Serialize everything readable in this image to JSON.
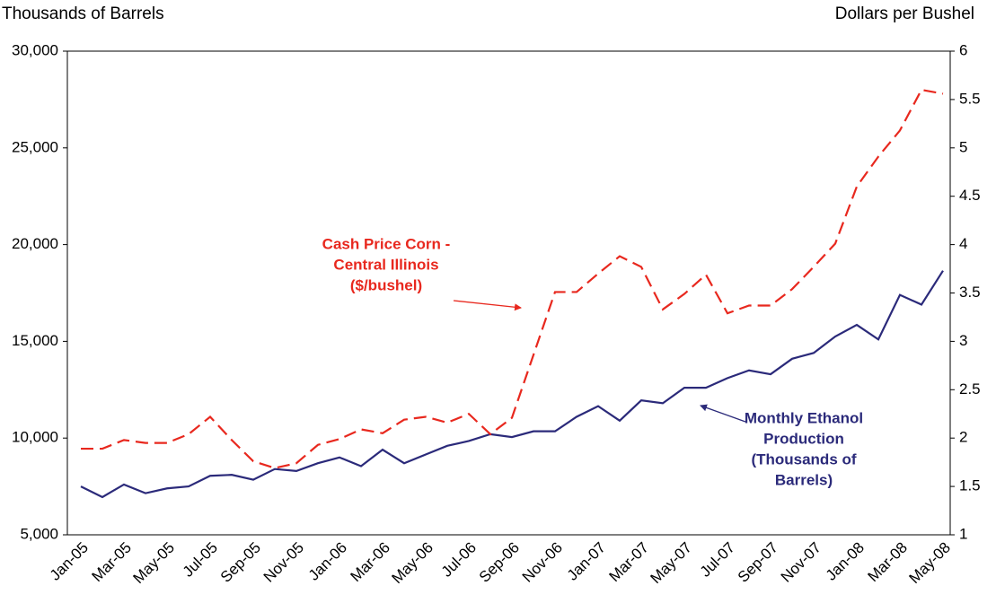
{
  "chart_data": {
    "type": "line",
    "y_label": "Thousands of Barrels",
    "y2_label": "Dollars  per Bushel",
    "categories": [
      "Jan-05",
      null,
      "Mar-05",
      null,
      "May-05",
      null,
      "Jul-05",
      null,
      "Sep-05",
      null,
      "Nov-05",
      null,
      "Jan-06",
      null,
      "Mar-06",
      null,
      "May-06",
      null,
      "Jul-06",
      null,
      "Sep-06",
      null,
      "Nov-06",
      null,
      "Jan-07",
      null,
      "Mar-07",
      null,
      "May-07",
      null,
      "Jul-07",
      null,
      "Sep-07",
      null,
      "Nov-07",
      null,
      "Jan-08",
      null,
      "Mar-08",
      null,
      "May-08"
    ],
    "series": [
      {
        "name": "Monthly Ethanol Production (Thousands of Barrels)",
        "color": "#2b2a7a",
        "dash": false,
        "values": [
          7500,
          6950,
          7600,
          7150,
          7400,
          7500,
          8050,
          8100,
          7850,
          8400,
          8300,
          8700,
          9000,
          8550,
          9400,
          8700,
          9150,
          9600,
          9850,
          10200,
          10050,
          10350,
          10350,
          11100,
          11650,
          10900,
          11950,
          11800,
          12600,
          12600,
          13100,
          13500,
          13300,
          14100,
          14400,
          15250,
          15850,
          15100,
          17400,
          16900,
          18650
        ]
      },
      {
        "name": "Cash Price Corn - Central Illinois ($/bushel)",
        "color": "#e8281e",
        "dash": true,
        "axis": "y2",
        "values": [
          1.89,
          1.89,
          1.98,
          1.95,
          1.95,
          2.04,
          2.22,
          1.98,
          1.76,
          1.69,
          1.74,
          1.93,
          1.99,
          2.09,
          2.05,
          2.19,
          2.22,
          2.16,
          2.25,
          2.04,
          2.21,
          2.86,
          3.51,
          3.51,
          3.7,
          3.88,
          3.77,
          3.33,
          3.49,
          3.69,
          3.29,
          3.37,
          3.37,
          3.54,
          3.77,
          4.01,
          4.6,
          4.91,
          5.18,
          5.6,
          5.56
        ]
      }
    ],
    "annotations": [
      {
        "lines": [
          "Cash Price Corn -",
          "Central Illinois",
          "($/bushel)"
        ],
        "color": "#e8281e"
      },
      {
        "lines": [
          "Monthly Ethanol",
          "Production",
          "(Thousands of",
          "Barrels)"
        ],
        "color": "#2b2a7a"
      }
    ],
    "ylim": [
      5000,
      30000
    ],
    "yticks": [
      {
        "value": 5000,
        "label": "5,000"
      },
      {
        "value": 10000,
        "label": "10,000"
      },
      {
        "value": 15000,
        "label": "15,000"
      },
      {
        "value": 20000,
        "label": "20,000"
      },
      {
        "value": 25000,
        "label": "25,000"
      },
      {
        "value": 30000,
        "label": "30,000"
      }
    ],
    "y2lim": [
      1,
      6
    ],
    "y2ticks": [
      1,
      1.5,
      2,
      2.5,
      3,
      3.5,
      4,
      4.5,
      5,
      5.5,
      6
    ],
    "grid": false
  }
}
